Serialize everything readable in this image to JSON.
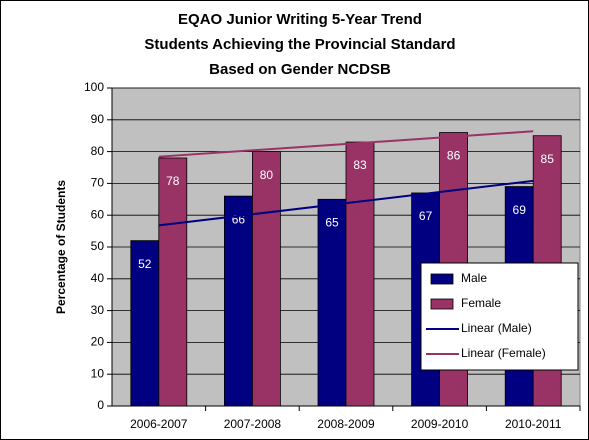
{
  "chart_data": {
    "type": "bar",
    "title": [
      "EQAO Junior Writing 5-Year Trend",
      "Students Achieving the Provincial Standard",
      "Based on Gender NCDSB"
    ],
    "y_label": "Percentage of Students",
    "categories": [
      "2006-2007",
      "2007-2008",
      "2008-2009",
      "2009-2010",
      "2010-2011"
    ],
    "series": [
      {
        "name": "Male",
        "color": "#000080",
        "values": [
          52,
          66,
          65,
          67,
          69
        ],
        "trendline": {
          "name": "Linear (Male)",
          "color": "#000080"
        }
      },
      {
        "name": "Female",
        "color": "#993366",
        "values": [
          78,
          80,
          83,
          86,
          85
        ],
        "trendline": {
          "name": "Linear (Female)",
          "color": "#993366"
        }
      }
    ],
    "ylim": [
      0,
      100
    ],
    "yticks": [
      0,
      10,
      20,
      30,
      40,
      50,
      60,
      70,
      80,
      90,
      100
    ],
    "grid": true,
    "legend": "right"
  }
}
